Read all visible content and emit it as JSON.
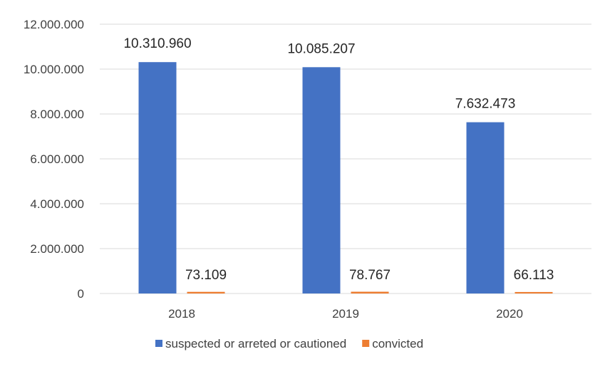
{
  "chart_data": {
    "type": "bar",
    "categories": [
      "2018",
      "2019",
      "2020"
    ],
    "series": [
      {
        "name": "suspected or arreted or cautioned",
        "values": [
          10310960,
          10085207,
          7632473
        ],
        "labels": [
          "10.310.960",
          "10.085.207",
          "7.632.473"
        ],
        "color": "#4472C4"
      },
      {
        "name": "convicted",
        "values": [
          73109,
          78767,
          66113
        ],
        "labels": [
          "73.109",
          "78.767",
          "66.113"
        ],
        "color": "#ED7D31"
      }
    ],
    "ylim": [
      0,
      12000000
    ],
    "yticks": [
      0,
      2000000,
      4000000,
      6000000,
      8000000,
      10000000,
      12000000
    ],
    "ytick_labels": [
      "0",
      "2.000.000",
      "4.000.000",
      "6.000.000",
      "8.000.000",
      "10.000.000",
      "12.000.000"
    ],
    "grid": true,
    "grid_color": "#D9D9D9",
    "legend_position": "bottom"
  }
}
